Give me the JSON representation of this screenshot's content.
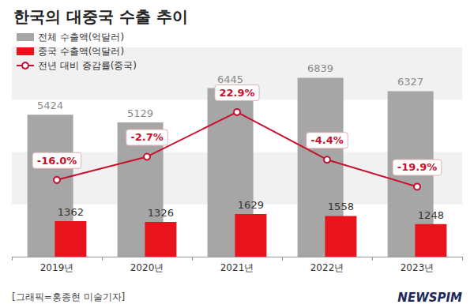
{
  "chart_data": {
    "type": "bar",
    "title": "한국의 대중국 수출 추이",
    "categories": [
      "2019년",
      "2020년",
      "2021년",
      "2022년",
      "2023년"
    ],
    "series": [
      {
        "name": "전체 수출액(억달러)",
        "type": "bar",
        "color": "#a6a6a6",
        "values": [
          5424,
          5129,
          6445,
          6839,
          6327
        ]
      },
      {
        "name": "중국 수출액(억달러)",
        "type": "bar",
        "color": "#e8141c",
        "values": [
          1362,
          1326,
          1629,
          1558,
          1248
        ]
      },
      {
        "name": "전년 대비 증감률(중국)",
        "type": "line",
        "axis": "y2",
        "color": "#c8102e",
        "marker": "circle",
        "line_style": "solid",
        "values": [
          -16.0,
          -2.7,
          22.9,
          -4.4,
          -19.9
        ],
        "value_labels": [
          "-16.0%",
          "-2.7%",
          "22.9%",
          "-4.4%",
          "-19.9%"
        ]
      }
    ],
    "ylim": [
      0,
      8000
    ],
    "yticks": [
      0,
      2000,
      4000,
      6000,
      8000
    ],
    "y2lim": [
      -60,
      60
    ],
    "y2ticks": [
      -60,
      -30,
      0,
      30,
      60
    ],
    "grid": true,
    "legend": "upper left",
    "data_labels": true,
    "tick_labels": "x",
    "annotations": [
      "[그래픽=홍종현 미술기자]",
      "NEWSPIM"
    ]
  }
}
